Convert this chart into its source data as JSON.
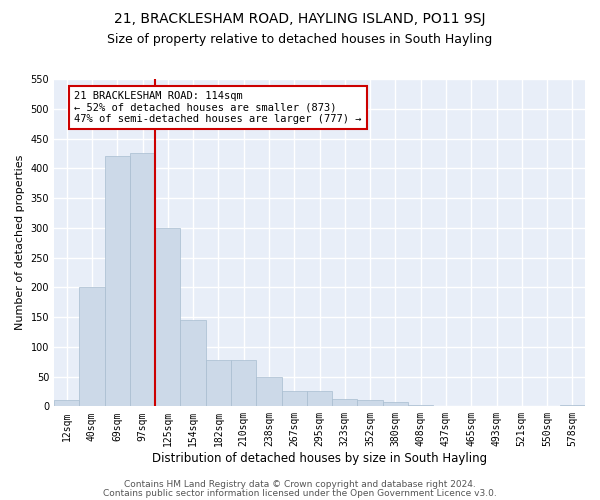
{
  "title": "21, BRACKLESHAM ROAD, HAYLING ISLAND, PO11 9SJ",
  "subtitle": "Size of property relative to detached houses in South Hayling",
  "xlabel": "Distribution of detached houses by size in South Hayling",
  "ylabel": "Number of detached properties",
  "bar_values": [
    10,
    200,
    420,
    425,
    300,
    145,
    78,
    78,
    50,
    25,
    25,
    12,
    10,
    8,
    3,
    0,
    0,
    0,
    0,
    0,
    3
  ],
  "bin_labels": [
    "12sqm",
    "40sqm",
    "69sqm",
    "97sqm",
    "125sqm",
    "154sqm",
    "182sqm",
    "210sqm",
    "238sqm",
    "267sqm",
    "295sqm",
    "323sqm",
    "352sqm",
    "380sqm",
    "408sqm",
    "437sqm",
    "465sqm",
    "493sqm",
    "521sqm",
    "550sqm",
    "578sqm"
  ],
  "bar_color": "#ccd9e8",
  "bar_edge_color": "#a8bdd0",
  "bg_color": "#e8eef8",
  "grid_color": "#ffffff",
  "red_line_x": 3.5,
  "red_line_color": "#cc0000",
  "annotation_text": "21 BRACKLESHAM ROAD: 114sqm\n← 52% of detached houses are smaller (873)\n47% of semi-detached houses are larger (777) →",
  "annotation_box_color": "#ffffff",
  "annotation_box_edge": "#cc0000",
  "ylim": [
    0,
    550
  ],
  "yticks": [
    0,
    50,
    100,
    150,
    200,
    250,
    300,
    350,
    400,
    450,
    500,
    550
  ],
  "footer1": "Contains HM Land Registry data © Crown copyright and database right 2024.",
  "footer2": "Contains public sector information licensed under the Open Government Licence v3.0.",
  "title_fontsize": 10,
  "subtitle_fontsize": 9,
  "xlabel_fontsize": 8.5,
  "ylabel_fontsize": 8,
  "tick_fontsize": 7,
  "annotation_fontsize": 7.5,
  "footer_fontsize": 6.5
}
